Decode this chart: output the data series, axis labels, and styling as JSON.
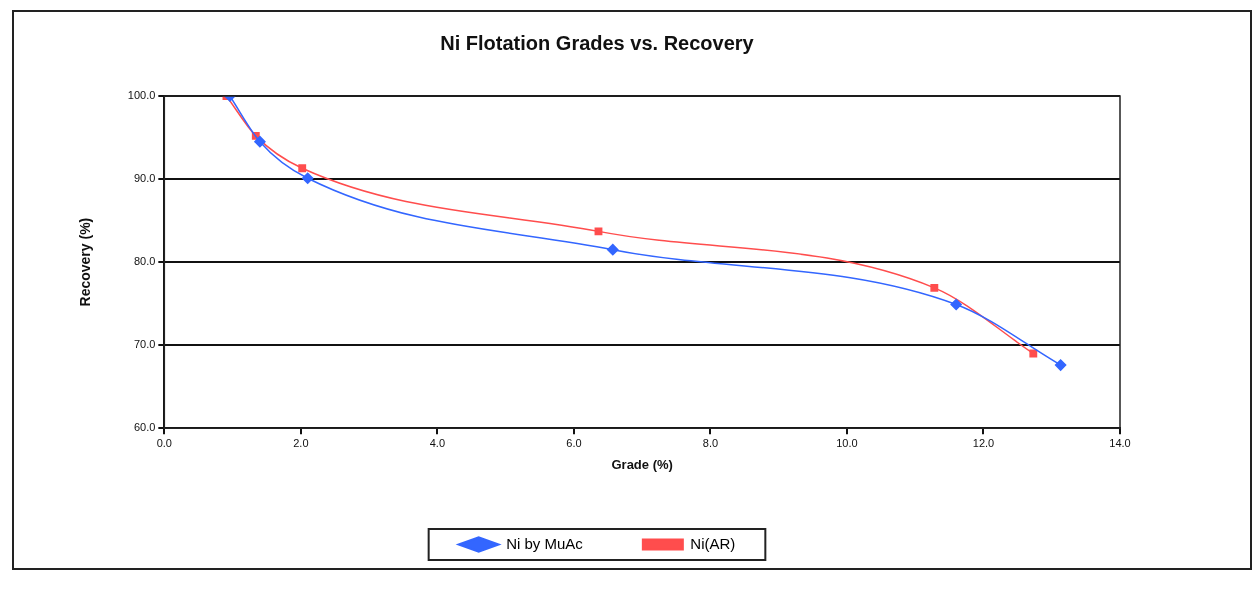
{
  "chart_data": {
    "type": "line",
    "title": "Ni Flotation Grades vs. Recovery",
    "xlabel": "Grade (%)",
    "ylabel": "Recovery (%)",
    "xlim": [
      0,
      14
    ],
    "xticks": [
      {
        "value": 0,
        "label": "0.0"
      },
      {
        "value": 2,
        "label": "2.0"
      },
      {
        "value": 4,
        "label": "4.0"
      },
      {
        "value": 6,
        "label": "6.0"
      },
      {
        "value": 8,
        "label": "8.0"
      },
      {
        "value": 10,
        "label": "10.0"
      },
      {
        "value": 12,
        "label": "12.0"
      },
      {
        "value": 14,
        "label": "14.0"
      }
    ],
    "ylim": [
      60,
      100
    ],
    "yticks": [
      {
        "value": 60,
        "label": "60.0"
      },
      {
        "value": 70,
        "label": "70.0"
      },
      {
        "value": 80,
        "label": "80.0"
      },
      {
        "value": 90,
        "label": "90.0"
      },
      {
        "value": 100,
        "label": "100.0"
      }
    ],
    "grid": "y",
    "legend": "bottom",
    "line_style": "solid",
    "series": [
      {
        "name": "Ni by MuAc",
        "color": "#3366ff",
        "marker": "diamond",
        "x": [
          0.96,
          1.4,
          2.1,
          6.57,
          11.6,
          13.13
        ],
        "values": [
          100,
          94.5,
          90.1,
          81.5,
          74.9,
          67.6
        ]
      },
      {
        "name": "Ni(AR)",
        "color": "#ff4d4d",
        "marker": "square",
        "x": [
          0.91,
          1.34,
          2.02,
          6.36,
          11.28,
          12.73
        ],
        "values": [
          100,
          95.2,
          91.3,
          83.7,
          76.9,
          69.0
        ]
      }
    ]
  }
}
